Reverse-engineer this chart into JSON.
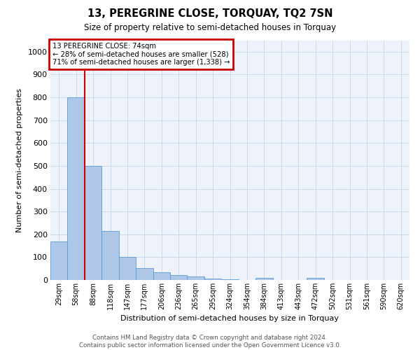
{
  "title1": "13, PEREGRINE CLOSE, TORQUAY, TQ2 7SN",
  "title2": "Size of property relative to semi-detached houses in Torquay",
  "xlabel": "Distribution of semi-detached houses by size in Torquay",
  "ylabel": "Number of semi-detached properties",
  "categories": [
    "29sqm",
    "58sqm",
    "88sqm",
    "118sqm",
    "147sqm",
    "177sqm",
    "206sqm",
    "236sqm",
    "265sqm",
    "295sqm",
    "324sqm",
    "354sqm",
    "384sqm",
    "413sqm",
    "443sqm",
    "472sqm",
    "502sqm",
    "531sqm",
    "561sqm",
    "590sqm",
    "620sqm"
  ],
  "values": [
    170,
    800,
    500,
    215,
    100,
    52,
    33,
    20,
    15,
    5,
    3,
    0,
    10,
    0,
    0,
    8,
    0,
    0,
    0,
    0,
    0
  ],
  "bar_color": "#aec6e8",
  "bar_edge_color": "#5b9bd5",
  "grid_color": "#c8d8ea",
  "property_line_x": 1.5,
  "annotation_text": "13 PEREGRINE CLOSE: 74sqm\n← 28% of semi-detached houses are smaller (528)\n71% of semi-detached houses are larger (1,338) →",
  "annotation_box_color": "#cc0000",
  "ylim": [
    0,
    1050
  ],
  "footer": "Contains HM Land Registry data © Crown copyright and database right 2024.\nContains public sector information licensed under the Open Government Licence v3.0.",
  "background_color": "#eef3fb"
}
